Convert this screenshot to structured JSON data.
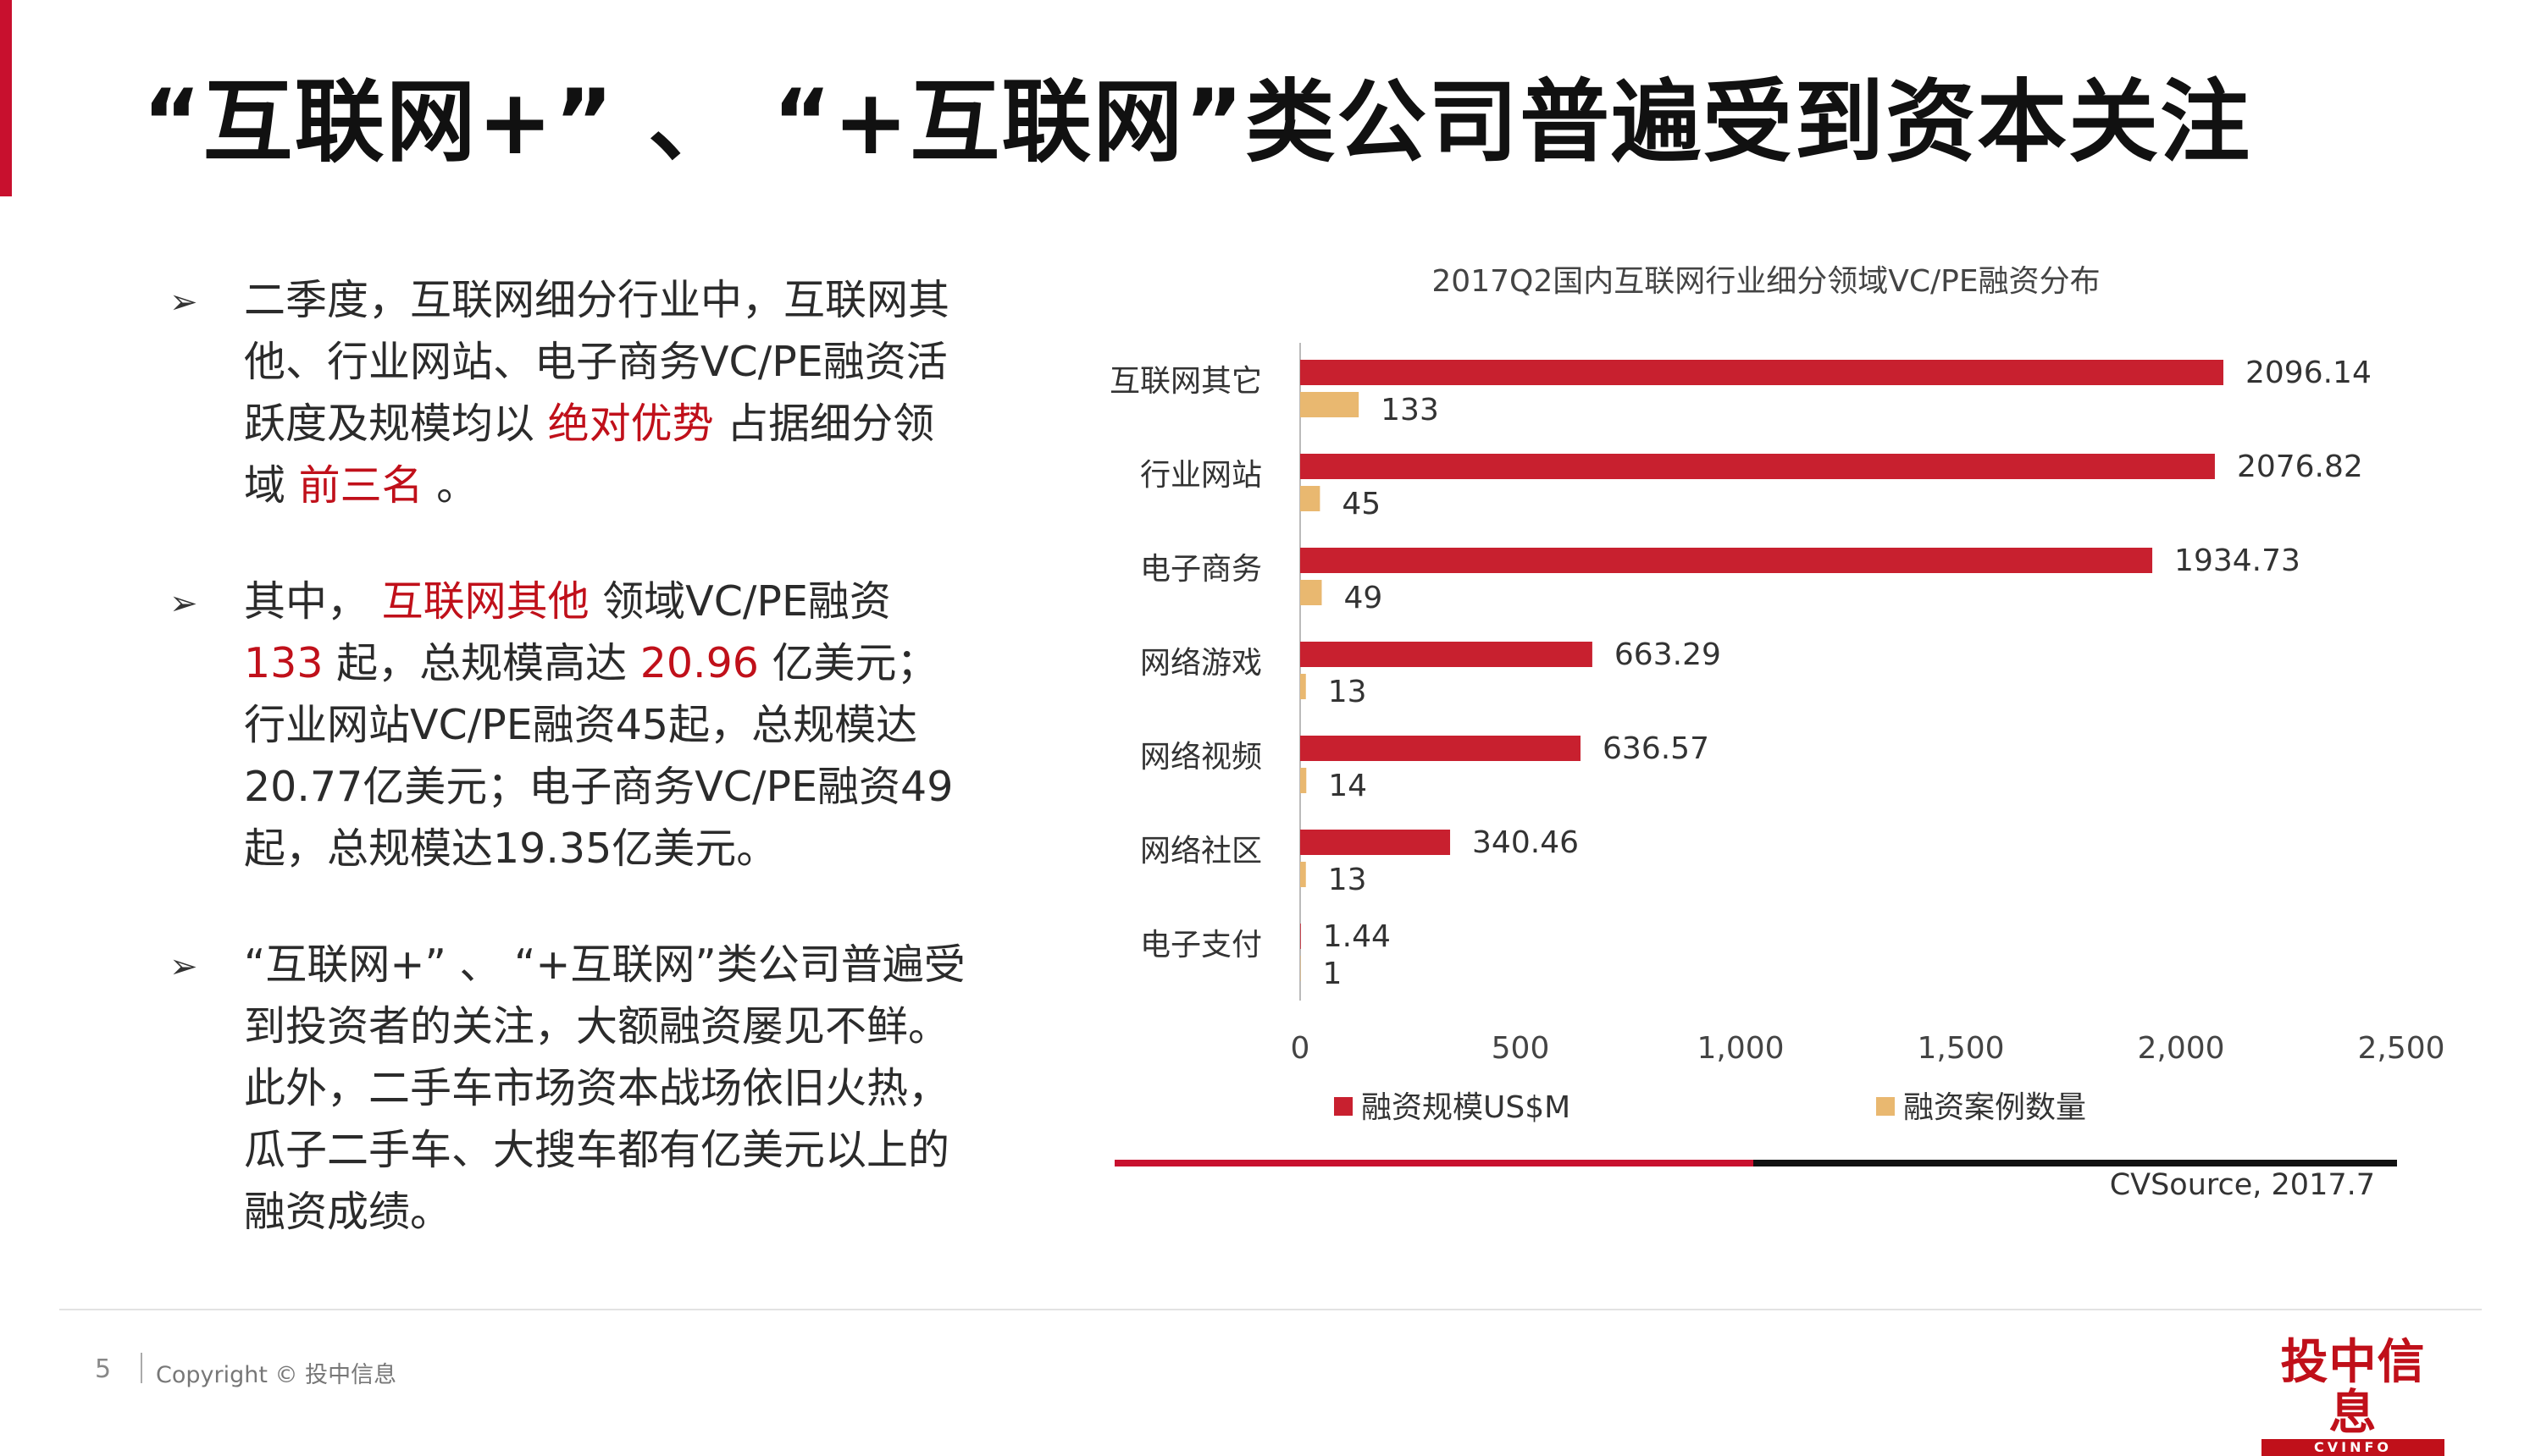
{
  "title": "“互联网+”  、 “+互联网”类公司普遍受到资本关注",
  "bullet_icon": "➢",
  "bullets": [
    {
      "segments": [
        {
          "text": "二季度，互联网细分行业中，互联网其他、行业网站、电子商务VC/PE融资活跃度及规模均以 ",
          "hl": false
        },
        {
          "text": "绝对优势",
          "hl": true
        },
        {
          "text": " 占据细分领域 ",
          "hl": false
        },
        {
          "text": "前三名",
          "hl": true
        },
        {
          "text": " 。",
          "hl": false
        }
      ]
    },
    {
      "segments": [
        {
          "text": "其中， ",
          "hl": false
        },
        {
          "text": "互联网其他",
          "hl": true
        },
        {
          "text": " 领域VC/PE融资 ",
          "hl": false
        },
        {
          "text": "133",
          "hl": true
        },
        {
          "text": " 起，总规模高达 ",
          "hl": false
        },
        {
          "text": "20.96",
          "hl": true
        },
        {
          "text": " 亿美元；行业网站VC/PE融资45起，总规模达20.77亿美元；电子商务VC/PE融资49起，总规模达19.35亿美元。",
          "hl": false
        }
      ]
    },
    {
      "segments": [
        {
          "text": "“互联网+”  、 “+互联网”类公司普遍受到投资者的关注，大额融资屡见不鲜。此外，二手车市场资本战场依旧火热，瓜子二手车、大搜车都有亿美元以上的融资成绩。",
          "hl": false
        }
      ]
    }
  ],
  "chart_data": {
    "type": "bar",
    "orientation": "horizontal",
    "title": "2017Q2国内互联网行业细分领域VC/PE融资分布",
    "categories": [
      "互联网其它",
      "行业网站",
      "电子商务",
      "网络游戏",
      "网络视频",
      "网络社区",
      "电子支付"
    ],
    "series": [
      {
        "name": "融资规模US$M",
        "values": [
          2096.14,
          2076.82,
          1934.73,
          663.29,
          636.57,
          340.46,
          1.44
        ],
        "labels": [
          "2096.14",
          "2076.82",
          "1934.73",
          "663.29",
          "636.57",
          "340.46",
          "1.44"
        ],
        "color": "#c8202f"
      },
      {
        "name": "融资案例数量",
        "values": [
          133,
          45,
          49,
          13,
          14,
          13,
          1
        ],
        "labels": [
          "133",
          "45",
          "49",
          "13",
          "14",
          "13",
          "1"
        ],
        "color": "#e9b870"
      }
    ],
    "xlim": [
      0,
      2500
    ],
    "xticks": [
      0,
      500,
      1000,
      1500,
      2000,
      2500
    ],
    "xtick_labels": [
      "0",
      "500",
      "1,000",
      "1,500",
      "2,000",
      "2,500"
    ],
    "grid": false,
    "legend": "bottom"
  },
  "source": "CVSource, 2017.7",
  "footer": {
    "page_number": "5",
    "copyright": "Copyright © 投中信息"
  },
  "logo": {
    "text": "投中信息",
    "subtext": "CVINFO"
  },
  "colors": {
    "accent": "#c8102e",
    "highlight": "#c0101a",
    "divider_dark": "#111111"
  }
}
